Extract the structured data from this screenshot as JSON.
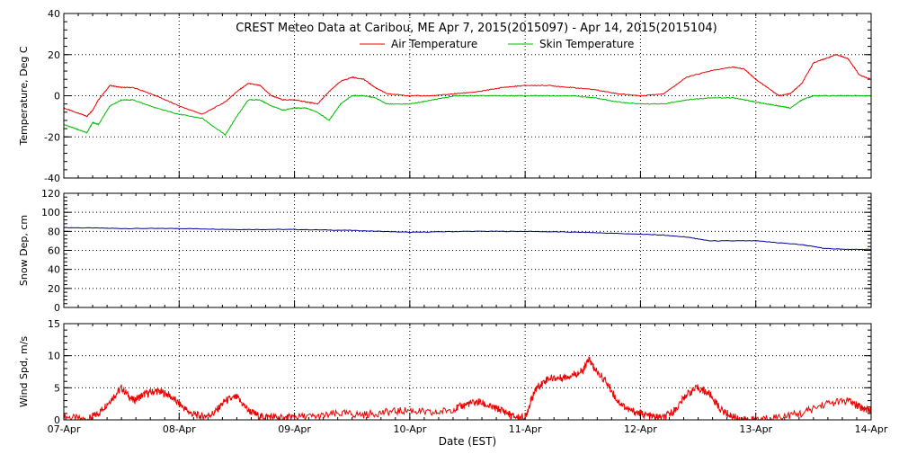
{
  "chart_data": [
    {
      "type": "line",
      "title": "CREST Meteo Data at Caribou, ME   Apr  7, 2015(2015097) - Apr 14, 2015(2015104)",
      "ylabel": "Temperature, Deg C",
      "ylim": [
        -40,
        40
      ],
      "yticks": [
        -40,
        -20,
        0,
        20,
        40
      ],
      "legend": "top-center",
      "grid": true,
      "x": [
        0,
        0.1,
        0.2,
        0.25,
        0.3,
        0.4,
        0.5,
        0.6,
        0.8,
        1.0,
        1.2,
        1.4,
        1.5,
        1.6,
        1.7,
        1.8,
        1.9,
        2.0,
        2.1,
        2.2,
        2.3,
        2.4,
        2.5,
        2.6,
        2.7,
        2.8,
        3.0,
        3.2,
        3.4,
        3.6,
        3.8,
        4.0,
        4.2,
        4.4,
        4.6,
        4.8,
        5.0,
        5.2,
        5.4,
        5.6,
        5.8,
        5.9,
        6.0,
        6.1,
        6.2,
        6.3,
        6.4,
        6.5,
        6.6,
        6.7,
        6.8,
        6.9,
        7.0
      ],
      "series": [
        {
          "name": "Air Temperature",
          "color": "#ee0000",
          "values": [
            -6,
            -8,
            -10,
            -7,
            -2,
            5,
            4,
            4,
            0,
            -5,
            -9,
            -3,
            2,
            6,
            5,
            0,
            -2,
            -2,
            -3,
            -4,
            2,
            7,
            9,
            8,
            4,
            1,
            0,
            0,
            1,
            2,
            4,
            5,
            5,
            4,
            3,
            1,
            0,
            1,
            9,
            12,
            14,
            13,
            8,
            4,
            0,
            1,
            6,
            16,
            18,
            20,
            18,
            10,
            8
          ]
        },
        {
          "name": "Skin Temperature",
          "color": "#00bb00",
          "values": [
            -14,
            -16,
            -18,
            -13,
            -14,
            -5,
            -2,
            -2,
            -6,
            -9,
            -11,
            -19,
            -10,
            -2,
            -2,
            -5,
            -7,
            -6,
            -6,
            -8,
            -12,
            -4,
            0,
            0,
            -1,
            -4,
            -4,
            -2,
            0,
            0,
            0,
            0,
            0,
            0,
            -1,
            -3,
            -4,
            -4,
            -2,
            -1,
            -1,
            -2,
            -3,
            -4,
            -5,
            -6,
            -2,
            0,
            0,
            0,
            0,
            0,
            0
          ]
        }
      ]
    },
    {
      "type": "line",
      "ylabel": "Snow Dep, cm",
      "ylim": [
        0,
        120
      ],
      "yticks": [
        0,
        20,
        40,
        60,
        80,
        100,
        120
      ],
      "grid": true,
      "x": [
        0,
        0.5,
        1.0,
        1.5,
        2.0,
        2.5,
        3.0,
        3.5,
        4.0,
        4.5,
        5.0,
        5.2,
        5.4,
        5.6,
        6.0,
        6.4,
        6.6,
        6.8,
        7.0
      ],
      "series": [
        {
          "name": "Snow Depth",
          "color": "#000099",
          "values": [
            84,
            83,
            83,
            82,
            82,
            81,
            79,
            80,
            80,
            79,
            77,
            76,
            74,
            70,
            70,
            66,
            62,
            61,
            61
          ]
        }
      ]
    },
    {
      "type": "line",
      "xlabel": "Date (EST)",
      "ylabel": "Wind Spd, m/s",
      "ylim": [
        0,
        15
      ],
      "yticks": [
        0,
        5,
        10,
        15
      ],
      "xticks": [
        "07-Apr",
        "08-Apr",
        "09-Apr",
        "10-Apr",
        "11-Apr",
        "12-Apr",
        "13-Apr",
        "14-Apr"
      ],
      "grid": true,
      "x": [
        0,
        0.2,
        0.3,
        0.4,
        0.5,
        0.6,
        0.7,
        0.8,
        0.9,
        1.0,
        1.1,
        1.2,
        1.3,
        1.4,
        1.5,
        1.6,
        1.7,
        1.8,
        1.9,
        2.0,
        2.2,
        2.4,
        2.6,
        2.8,
        3.0,
        3.2,
        3.4,
        3.5,
        3.6,
        3.7,
        3.8,
        3.9,
        4.0,
        4.05,
        4.1,
        4.2,
        4.3,
        4.4,
        4.5,
        4.55,
        4.6,
        4.7,
        4.8,
        4.9,
        5.0,
        5.1,
        5.2,
        5.3,
        5.4,
        5.5,
        5.6,
        5.7,
        5.8,
        5.9,
        6.0,
        6.2,
        6.4,
        6.6,
        6.8,
        6.9,
        7.0
      ],
      "series": [
        {
          "name": "Wind Speed",
          "color": "#ee0000",
          "values": [
            0.5,
            0,
            1,
            3,
            5,
            3,
            4,
            4.5,
            4,
            2.5,
            1,
            0.5,
            1,
            3,
            3.5,
            1.5,
            0.5,
            0.5,
            0.2,
            0.5,
            0.5,
            1,
            0.8,
            1.2,
            1.5,
            1,
            1.8,
            2.5,
            2.8,
            2,
            1.5,
            0.5,
            0.3,
            3,
            5,
            6.5,
            6.5,
            7,
            7.5,
            9.5,
            8,
            6,
            3,
            1.5,
            1,
            0.5,
            0.3,
            1.5,
            4,
            5,
            4,
            1.5,
            0.5,
            0,
            0,
            0.5,
            1,
            2.5,
            3,
            2,
            1.5
          ]
        }
      ]
    }
  ]
}
